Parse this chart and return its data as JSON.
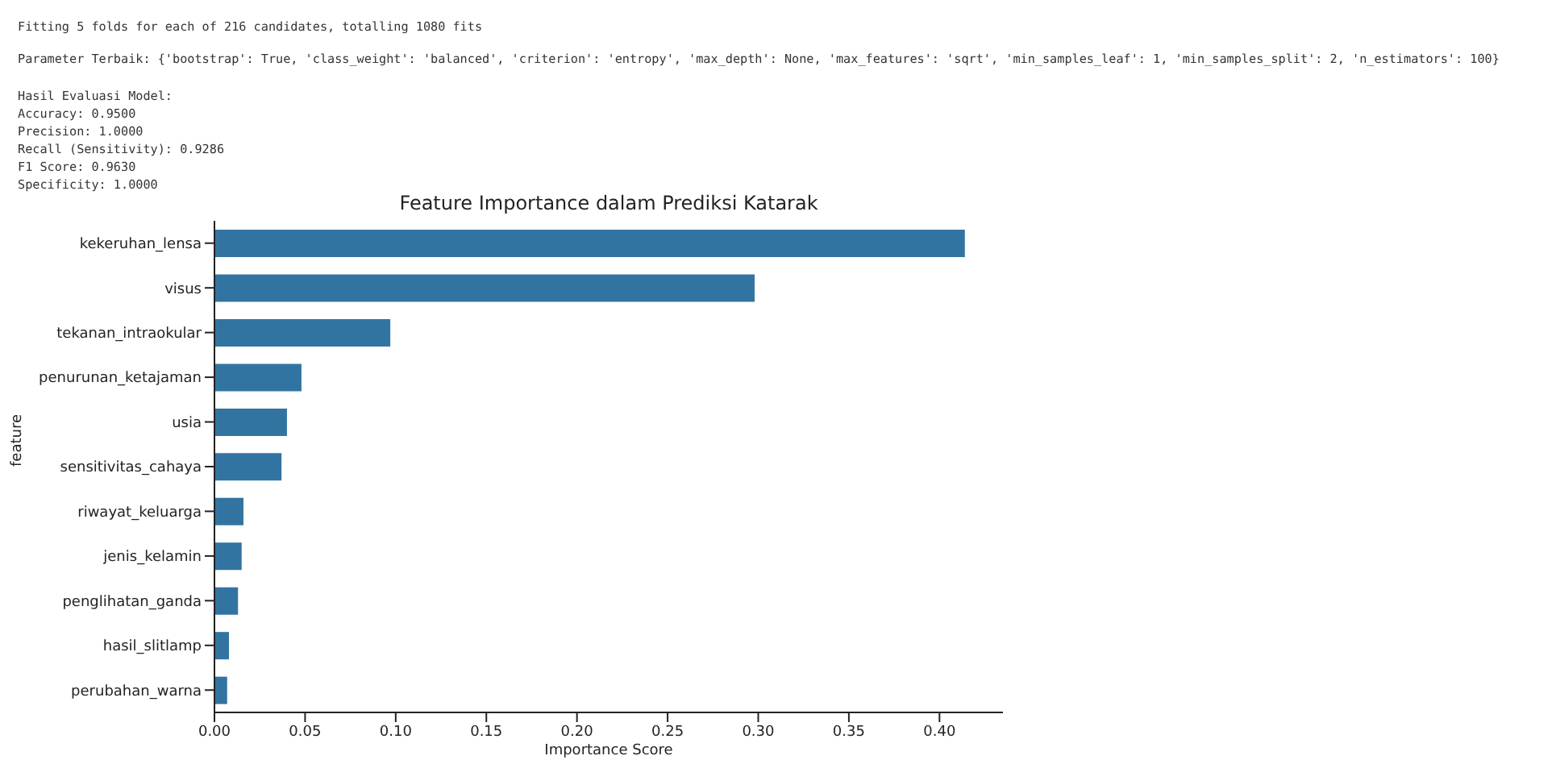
{
  "chart_data": {
    "type": "bar",
    "orientation": "horizontal",
    "title": "Feature Importance dalam Prediksi Katarak",
    "xlabel": "Importance Score",
    "ylabel": "feature",
    "annotations": [
      "Fitting 5 folds for each of 216 candidates, totalling 1080 fits",
      "Parameter Terbaik: {'bootstrap': True, 'class_weight': 'balanced', 'criterion': 'entropy', 'max_depth': None, 'max_features': 'sqrt', 'min_samples_leaf': 1, 'min_samples_split': 2, 'n_estimators': 100}",
      "Hasil Evaluasi Model:",
      "Accuracy: 0.9500",
      "Precision: 1.0000",
      "Recall (Sensitivity): 0.9286",
      "F1 Score: 0.9630",
      "Specificity: 1.0000"
    ],
    "categories": [
      "kekeruhan_lensa",
      "visus",
      "tekanan_intraokular",
      "penurunan_ketajaman",
      "usia",
      "sensitivitas_cahaya",
      "riwayat_keluarga",
      "jenis_kelamin",
      "penglihatan_ganda",
      "hasil_slitlamp",
      "perubahan_warna"
    ],
    "values": [
      0.414,
      0.298,
      0.097,
      0.048,
      0.04,
      0.037,
      0.016,
      0.015,
      0.013,
      0.008,
      0.007
    ],
    "color": "#3274a1",
    "xlim": [
      0,
      0.435
    ],
    "xticks": [
      {
        "value": 0,
        "label": "0.00"
      },
      {
        "value": 0.05,
        "label": "0.05"
      },
      {
        "value": 0.1,
        "label": "0.10"
      },
      {
        "value": 0.15,
        "label": "0.15"
      },
      {
        "value": 0.2,
        "label": "0.20"
      },
      {
        "value": 0.25,
        "label": "0.25"
      },
      {
        "value": 0.3,
        "label": "0.30"
      },
      {
        "value": 0.35,
        "label": "0.35"
      },
      {
        "value": 0.4,
        "label": "0.40"
      }
    ],
    "grid": false
  }
}
